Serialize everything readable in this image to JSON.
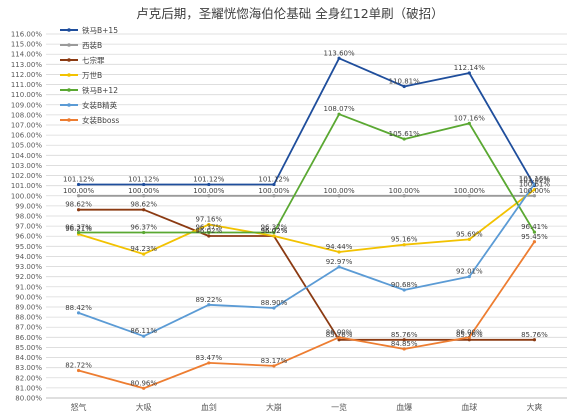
{
  "chart_data": {
    "type": "line",
    "title": "卢克后期，圣耀恍惚海伯伦基础 全身红12单刷（破招）",
    "categories": [
      "怒气",
      "大吸",
      "血剑",
      "大崩",
      "一览",
      "血爆",
      "血球",
      "大爽"
    ],
    "ylim": [
      80,
      116
    ],
    "ytick_step": 1,
    "grid": true,
    "legend_position": "top-left-inside",
    "series": [
      {
        "name": "铁马B+15",
        "color": "#1f4e9c",
        "values": [
          101.12,
          101.12,
          101.12,
          101.12,
          113.6,
          110.81,
          112.14,
          101.02
        ],
        "labels": [
          "101.12%",
          "101.12%",
          "101.12%",
          "101.12%",
          "113.60%",
          "110.81%",
          "112.14%",
          "101.02%"
        ]
      },
      {
        "name": "西装B",
        "color": "#9a9a9a",
        "values": [
          100,
          100,
          100,
          100,
          100,
          100,
          100,
          100
        ],
        "labels": [
          "100.00%",
          "100.00%",
          "100.00%",
          "100.00%",
          "100.00%",
          "100.00%",
          "100.00%",
          "100.00%"
        ]
      },
      {
        "name": "七宗罪",
        "color": "#8b3a12",
        "values": [
          98.62,
          98.62,
          96.02,
          96.02,
          85.76,
          85.76,
          85.76,
          85.76
        ],
        "labels": [
          "98.62%",
          "98.62%",
          "96.02%",
          "96.02%",
          "85.76%",
          "85.76%",
          "85.76%",
          "85.76%"
        ]
      },
      {
        "name": "万世B",
        "color": "#f2c200",
        "values": [
          96.21,
          94.23,
          97.16,
          96.02,
          94.44,
          95.16,
          95.69,
          100.61
        ],
        "labels": [
          "96.21%",
          "94.23%",
          "97.16%",
          "96.02%",
          "94.44%",
          "95.16%",
          "95.69%",
          "100.61%"
        ]
      },
      {
        "name": "铁马B+12",
        "color": "#5aa832",
        "values": [
          96.37,
          96.37,
          96.37,
          96.37,
          108.07,
          105.61,
          107.16,
          96.41
        ],
        "labels": [
          "96.37%",
          "96.37%",
          "96.37%",
          "96.37%",
          "108.07%",
          "105.61%",
          "107.16%",
          "96.41%"
        ]
      },
      {
        "name": "女装B精英",
        "color": "#5b9bd5",
        "values": [
          88.42,
          86.11,
          89.22,
          88.9,
          92.97,
          90.68,
          92.01,
          101.16
        ],
        "labels": [
          "88.42%",
          "86.11%",
          "89.22%",
          "88.90%",
          "92.97%",
          "90.68%",
          "92.01%",
          "101.16%"
        ]
      },
      {
        "name": "女装Bboss",
        "color": "#ed7d31",
        "values": [
          82.72,
          80.96,
          83.47,
          83.17,
          86.0,
          84.85,
          86.0,
          95.45
        ],
        "labels": [
          "82.72%",
          "80.96%",
          "83.47%",
          "83.17%",
          "86.00%",
          "84.85%",
          "86.00%",
          "95.45%"
        ]
      }
    ]
  }
}
